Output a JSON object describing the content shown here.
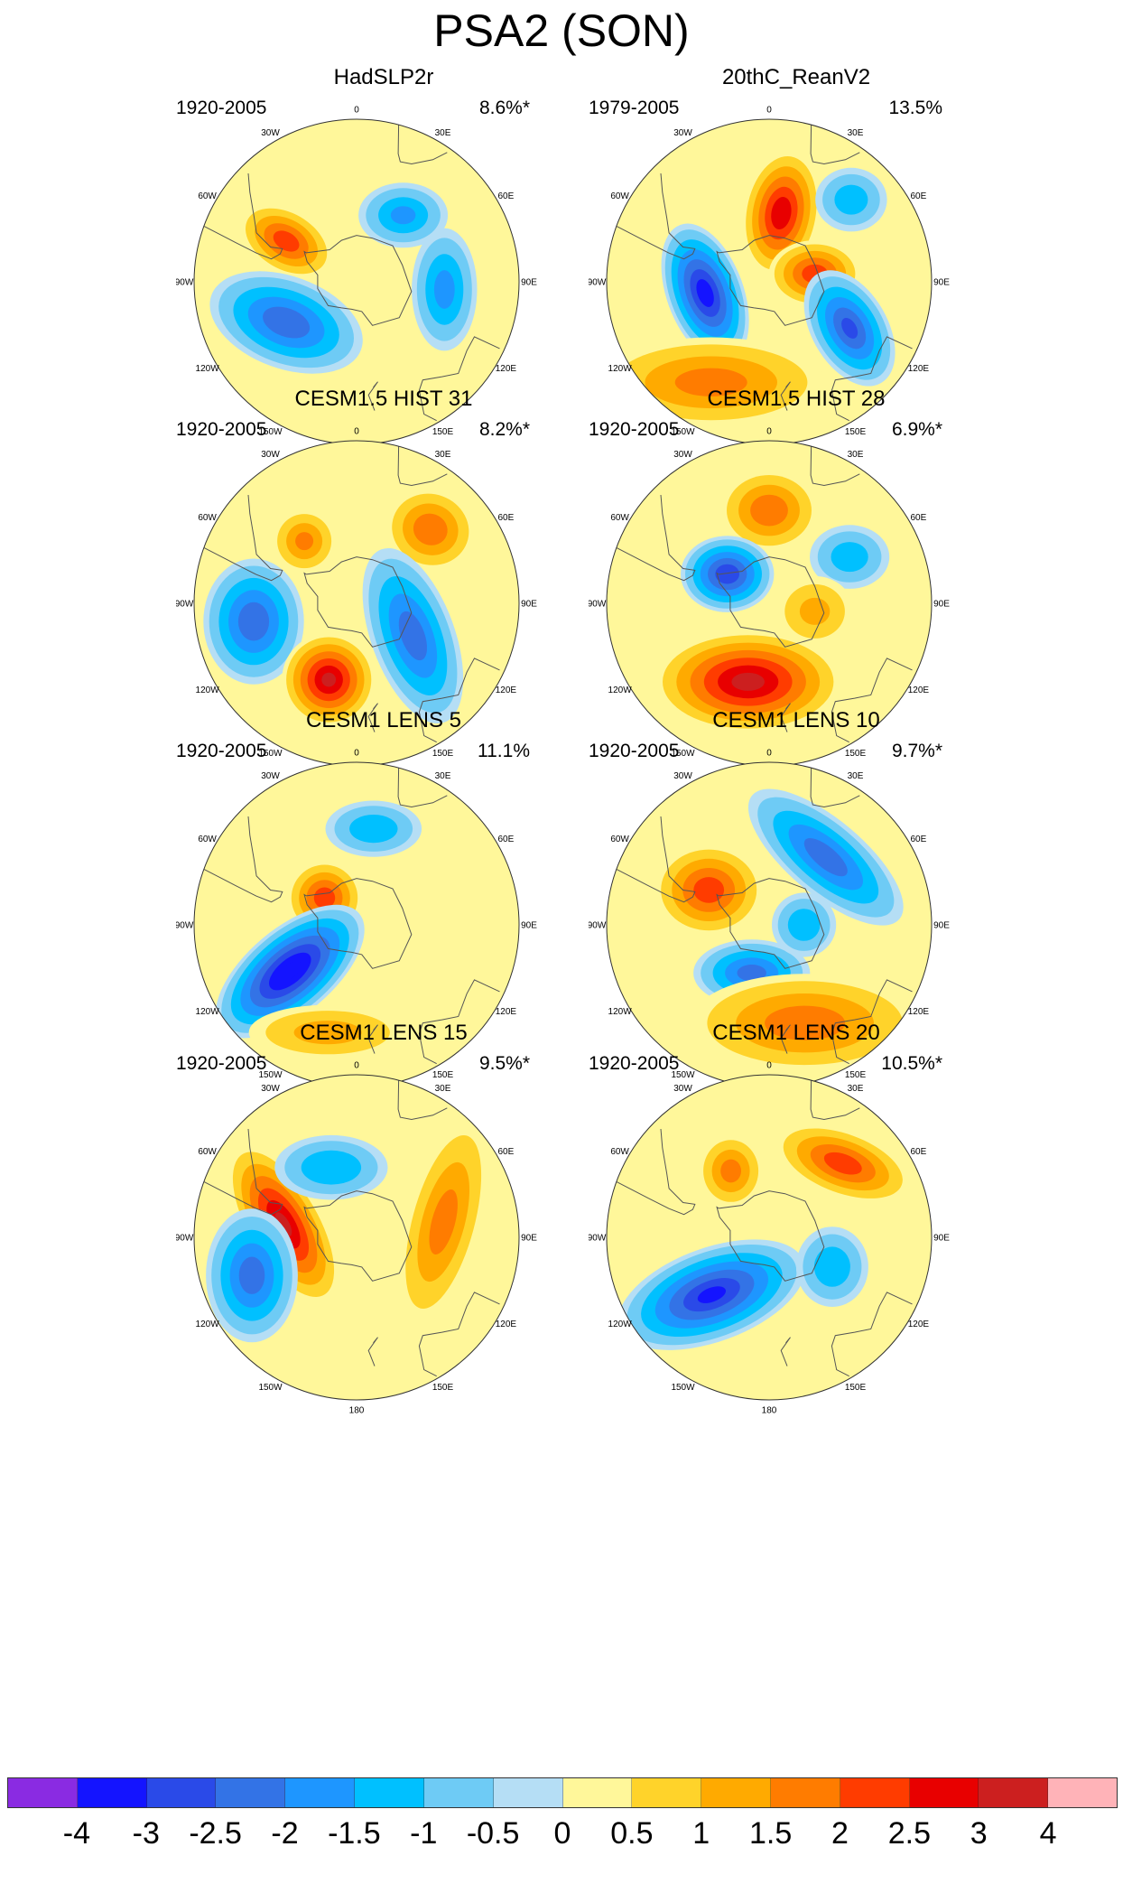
{
  "title": "PSA2 (SON)",
  "panels": [
    {
      "title": "HadSLP2r",
      "period": "1920-2005",
      "variance": "8.6%*",
      "blobs": [
        {
          "lon": -60,
          "lat": -55,
          "amp": 2.2,
          "rx": 60,
          "ry": 38,
          "rot": 30
        },
        {
          "lon": 35,
          "lat": -55,
          "amp": -1.5,
          "rx": 55,
          "ry": 40,
          "rot": 0
        },
        {
          "lon": 95,
          "lat": -52,
          "amp": -1.6,
          "rx": 40,
          "ry": 75,
          "rot": 0
        },
        {
          "lon": -120,
          "lat": -55,
          "amp": -2.3,
          "rx": 95,
          "ry": 55,
          "rot": 20
        }
      ]
    },
    {
      "title": "20thC_ReanV2",
      "period": "1979-2005",
      "variance": "13.5%",
      "blobs": [
        {
          "lon": 10,
          "lat": -60,
          "amp": 2.8,
          "rx": 45,
          "ry": 75,
          "rot": 10
        },
        {
          "lon": 80,
          "lat": -70,
          "amp": 2.2,
          "rx": 55,
          "ry": 40,
          "rot": 0
        },
        {
          "lon": -100,
          "lat": -62,
          "amp": -3.2,
          "rx": 45,
          "ry": 85,
          "rot": -20
        },
        {
          "lon": -150,
          "lat": -40,
          "amp": 1.6,
          "rx": 140,
          "ry": 55,
          "rot": 0
        },
        {
          "lon": 120,
          "lat": -50,
          "amp": -2.5,
          "rx": 45,
          "ry": 75,
          "rot": -30
        },
        {
          "lon": 45,
          "lat": -40,
          "amp": -1.2,
          "rx": 45,
          "ry": 40,
          "rot": 0
        }
      ]
    },
    {
      "title": "CESM1.5 HIST 31",
      "period": "1920-2005",
      "variance": "8.2%*",
      "blobs": [
        {
          "lon": -40,
          "lat": -55,
          "amp": 1.5,
          "rx": 40,
          "ry": 40,
          "rot": 0
        },
        {
          "lon": 45,
          "lat": -45,
          "amp": 1.8,
          "rx": 55,
          "ry": 50,
          "rot": 20
        },
        {
          "lon": -100,
          "lat": -45,
          "amp": -2.3,
          "rx": 60,
          "ry": 75,
          "rot": 0
        },
        {
          "lon": -160,
          "lat": -55,
          "amp": 3.0,
          "rx": 55,
          "ry": 55,
          "rot": 0
        },
        {
          "lon": 120,
          "lat": -62,
          "amp": -2.2,
          "rx": 50,
          "ry": 110,
          "rot": -20
        }
      ]
    },
    {
      "title": "CESM1.5 HIST 28",
      "period": "1920-2005",
      "variance": "6.9%*",
      "blobs": [
        {
          "lon": 0,
          "lat": -50,
          "amp": 1.8,
          "rx": 60,
          "ry": 50,
          "rot": 0
        },
        {
          "lon": -55,
          "lat": -68,
          "amp": -2.8,
          "rx": 55,
          "ry": 45,
          "rot": 0
        },
        {
          "lon": -165,
          "lat": -55,
          "amp": 3.1,
          "rx": 110,
          "ry": 60,
          "rot": 0
        },
        {
          "lon": 60,
          "lat": -50,
          "amp": -1.2,
          "rx": 50,
          "ry": 40,
          "rot": 0
        },
        {
          "lon": 100,
          "lat": -70,
          "amp": 1.0,
          "rx": 50,
          "ry": 45,
          "rot": 0
        }
      ]
    },
    {
      "title": "CESM1 LENS 5",
      "period": "1920-2005",
      "variance": "11.1%",
      "blobs": [
        {
          "lon": -50,
          "lat": -72,
          "amp": 2.2,
          "rx": 45,
          "ry": 45,
          "rot": 0
        },
        {
          "lon": -125,
          "lat": -55,
          "amp": -3.6,
          "rx": 105,
          "ry": 50,
          "rot": -40
        },
        {
          "lon": 10,
          "lat": -48,
          "amp": -1.3,
          "rx": 60,
          "ry": 35,
          "rot": 0
        },
        {
          "lon": -165,
          "lat": -42,
          "amp": 1.1,
          "rx": 100,
          "ry": 35,
          "rot": 0
        }
      ]
    },
    {
      "title": "CESM1 LENS 10",
      "period": "1920-2005",
      "variance": "9.7%*",
      "blobs": [
        {
          "lon": -60,
          "lat": -60,
          "amp": 2.2,
          "rx": 65,
          "ry": 55,
          "rot": 0
        },
        {
          "lon": 40,
          "lat": -52,
          "amp": -2.2,
          "rx": 115,
          "ry": 45,
          "rot": 40
        },
        {
          "lon": -160,
          "lat": -68,
          "amp": -2.1,
          "rx": 70,
          "ry": 40,
          "rot": 0
        },
        {
          "lon": 160,
          "lat": -45,
          "amp": 1.7,
          "rx": 140,
          "ry": 60,
          "rot": 0
        },
        {
          "lon": 90,
          "lat": -75,
          "amp": -1.3,
          "rx": 40,
          "ry": 40,
          "rot": 0
        }
      ]
    },
    {
      "title": "CESM1 LENS 15",
      "period": "1920-2005",
      "variance": "9.5%*",
      "blobs": [
        {
          "lon": -80,
          "lat": -58,
          "amp": 3.0,
          "rx": 45,
          "ry": 105,
          "rot": -30
        },
        {
          "lon": -110,
          "lat": -42,
          "amp": -2.2,
          "rx": 55,
          "ry": 80,
          "rot": 0
        },
        {
          "lon": 80,
          "lat": -52,
          "amp": 1.6,
          "rx": 45,
          "ry": 130,
          "rot": 15
        },
        {
          "lon": -20,
          "lat": -58,
          "amp": -1.4,
          "rx": 70,
          "ry": 40,
          "rot": 0
        }
      ]
    },
    {
      "title": "CESM1 LENS 20",
      "period": "1920-2005",
      "variance": "10.5%*",
      "blobs": [
        {
          "lon": -135,
          "lat": -55,
          "amp": -3.0,
          "rx": 115,
          "ry": 55,
          "rot": -20
        },
        {
          "lon": 45,
          "lat": -45,
          "amp": 2.2,
          "rx": 85,
          "ry": 40,
          "rot": 20
        },
        {
          "lon": -30,
          "lat": -57,
          "amp": 1.6,
          "rx": 40,
          "ry": 45,
          "rot": 0
        },
        {
          "lon": 115,
          "lat": -60,
          "amp": -1.3,
          "rx": 45,
          "ry": 50,
          "rot": 0
        }
      ]
    }
  ],
  "lon_labels": [
    {
      "lon": 0,
      "text": "0"
    },
    {
      "lon": 30,
      "text": "30E"
    },
    {
      "lon": 60,
      "text": "60E"
    },
    {
      "lon": 90,
      "text": "90E"
    },
    {
      "lon": 120,
      "text": "120E"
    },
    {
      "lon": 150,
      "text": "150E"
    },
    {
      "lon": 180,
      "text": "180"
    },
    {
      "lon": -150,
      "text": "150W"
    },
    {
      "lon": -120,
      "text": "120W"
    },
    {
      "lon": -90,
      "text": "90W"
    },
    {
      "lon": -60,
      "text": "60W"
    },
    {
      "lon": -30,
      "text": "30W"
    }
  ],
  "colorbar": {
    "colors": [
      "#8a2be2",
      "#1414ff",
      "#2a4ae8",
      "#3373e6",
      "#1e96ff",
      "#00c0ff",
      "#6ecbf5",
      "#b5def5",
      "#fff79a",
      "#ffd32a",
      "#ffaa00",
      "#ff7c00",
      "#ff3c00",
      "#e80000",
      "#cc1f1f",
      "#ffb3b8"
    ],
    "ticks": [
      "-4",
      "-3",
      "-2.5",
      "-2",
      "-1.5",
      "-1",
      "-0.5",
      "0",
      "0.5",
      "1",
      "1.5",
      "2",
      "2.5",
      "3",
      "4"
    ]
  }
}
